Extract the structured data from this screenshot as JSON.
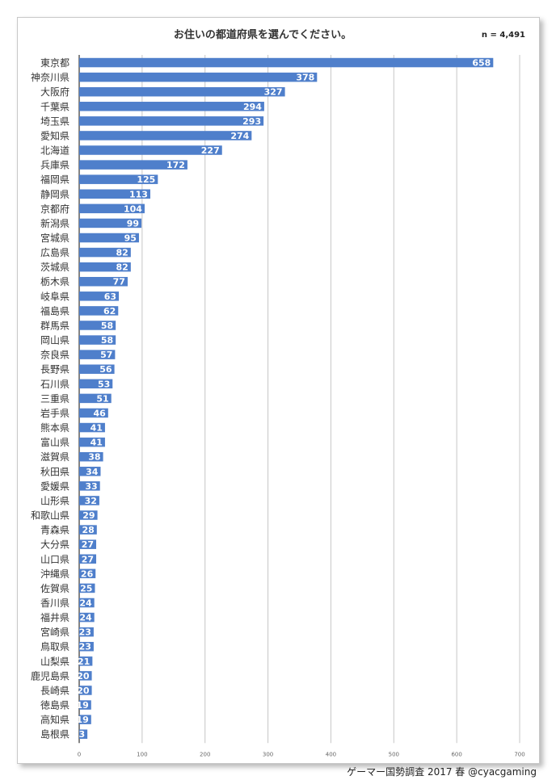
{
  "chart_data": {
    "type": "bar",
    "orientation": "horizontal",
    "title": "お住いの都道府県を選んでください。",
    "annotation": "n = 4,491",
    "categories": [
      "東京都",
      "神奈川県",
      "大阪府",
      "千葉県",
      "埼玉県",
      "愛知県",
      "北海道",
      "兵庫県",
      "福岡県",
      "静岡県",
      "京都府",
      "新潟県",
      "宮城県",
      "広島県",
      "茨城県",
      "栃木県",
      "岐阜県",
      "福島県",
      "群馬県",
      "岡山県",
      "奈良県",
      "長野県",
      "石川県",
      "三重県",
      "岩手県",
      "熊本県",
      "富山県",
      "滋賀県",
      "秋田県",
      "愛媛県",
      "山形県",
      "和歌山県",
      "青森県",
      "大分県",
      "山口県",
      "沖縄県",
      "佐賀県",
      "香川県",
      "福井県",
      "宮崎県",
      "鳥取県",
      "山梨県",
      "鹿児島県",
      "長崎県",
      "徳島県",
      "高知県",
      "島根県"
    ],
    "values": [
      658,
      378,
      327,
      294,
      293,
      274,
      227,
      172,
      125,
      113,
      104,
      99,
      95,
      82,
      82,
      77,
      63,
      62,
      58,
      58,
      57,
      56,
      53,
      51,
      46,
      41,
      41,
      38,
      34,
      33,
      32,
      29,
      28,
      27,
      27,
      26,
      25,
      24,
      24,
      23,
      23,
      21,
      20,
      20,
      19,
      19,
      13
    ],
    "xlim": [
      0,
      700
    ],
    "xticks": [
      "0",
      "100",
      "200",
      "300",
      "400",
      "500",
      "600",
      "700"
    ],
    "grid": true,
    "bar_color": "#4f7fcb",
    "label_color": "#ffffff"
  },
  "footer": {
    "credit": "ゲーマー国勢調査 2017 春 @cyacgaming"
  }
}
